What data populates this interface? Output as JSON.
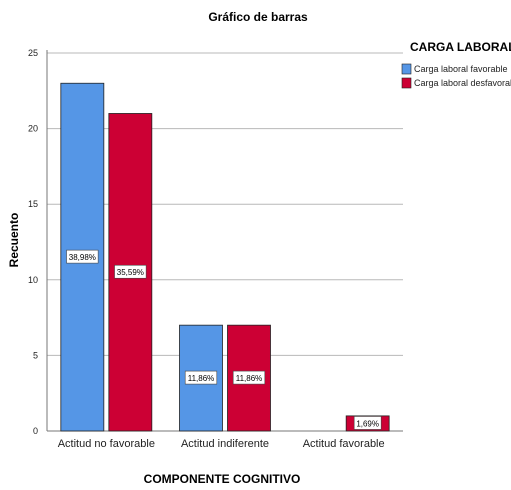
{
  "chart_data": {
    "type": "bar",
    "title": "Gráfico de barras",
    "xlabel": "COMPONENTE COGNITIVO",
    "ylabel": "Recuento",
    "categories": [
      "Actitud no favorable",
      "Actitud indiferente",
      "Actitud  favorable"
    ],
    "series": [
      {
        "name": "Carga laboral favorable",
        "color": "#5596e6",
        "values": [
          23,
          7,
          0
        ],
        "labels": [
          "38,98%",
          "11,86%",
          ""
        ]
      },
      {
        "name": "Carga laboral desfavorable",
        "color": "#cc0034",
        "values": [
          21,
          7,
          1
        ],
        "labels": [
          "35,59%",
          "11,86%",
          "1,69%"
        ]
      }
    ],
    "ylim": [
      0,
      25
    ],
    "yticks": [
      0,
      5,
      10,
      15,
      20,
      25
    ],
    "legend": {
      "title": "CARGA LABORAL",
      "position": "top-right"
    },
    "grid": "horizontal"
  }
}
